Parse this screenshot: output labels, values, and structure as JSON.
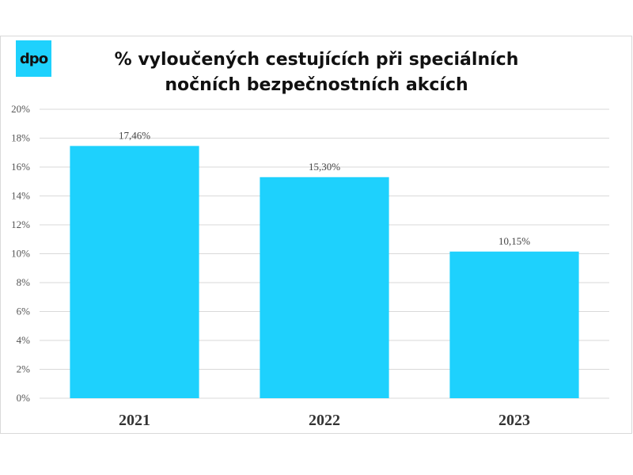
{
  "logo_text": "dpo",
  "colors": {
    "bar": "#1ed1fd",
    "grid": "#d9d9d9",
    "logo": "#1ed1fd"
  },
  "chart_data": {
    "type": "bar",
    "title_line1": "% vyloučených cestujících při speciálních",
    "title_line2": "nočních bezpečnostních akcích",
    "categories": [
      "2021",
      "2022",
      "2023"
    ],
    "values": [
      17.46,
      15.3,
      10.15
    ],
    "data_labels": [
      "17,46%",
      "15,30%",
      "10,15%"
    ],
    "ylim": [
      0,
      20
    ],
    "y_ticks": [
      0,
      2,
      4,
      6,
      8,
      10,
      12,
      14,
      16,
      18,
      20
    ],
    "y_tick_labels": [
      "0%",
      "2%",
      "4%",
      "6%",
      "8%",
      "10%",
      "12%",
      "14%",
      "16%",
      "18%",
      "20%"
    ],
    "grid": true,
    "legend": "none"
  }
}
